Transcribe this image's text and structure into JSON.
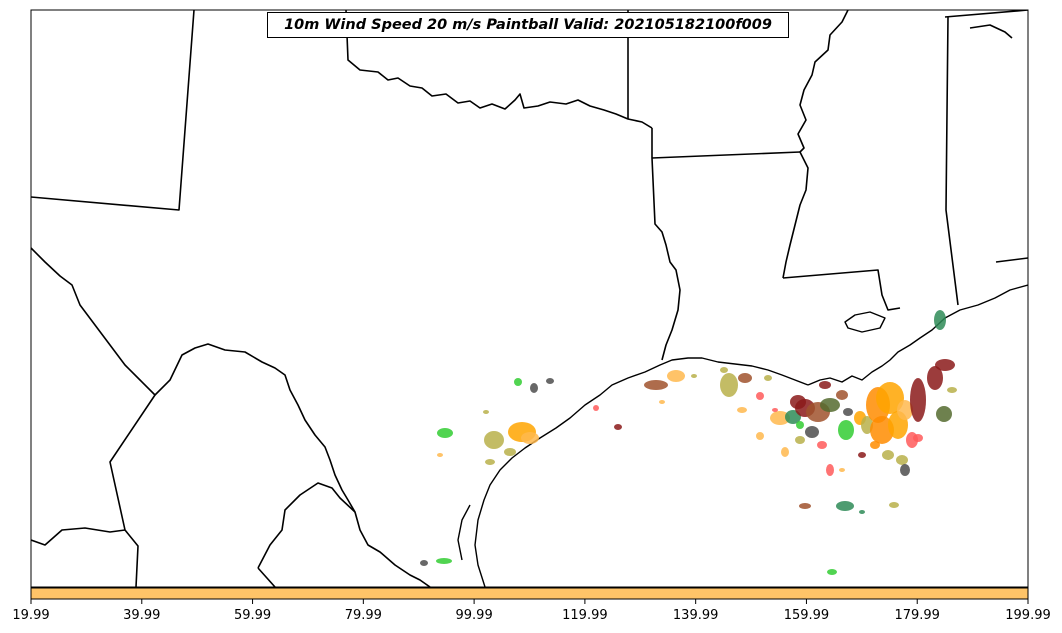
{
  "title": "10m Wind Speed 20 m/s Paintball Valid: 202105182100f009",
  "colorbar": {
    "color": "#FFC468",
    "tick_labels": [
      "19.99",
      "39.99",
      "59.99",
      "79.99",
      "99.99",
      "119.99",
      "139.99",
      "159.99",
      "179.99",
      "199.99"
    ]
  },
  "paintball_colors": [
    "#FFA500",
    "#FF8C00",
    "#FFB84D",
    "#B8B04A",
    "#A0522D",
    "#8B1A1A",
    "#FF5A5A",
    "#32CD32",
    "#2E8B57",
    "#556B2F",
    "#4D4D4D"
  ]
}
